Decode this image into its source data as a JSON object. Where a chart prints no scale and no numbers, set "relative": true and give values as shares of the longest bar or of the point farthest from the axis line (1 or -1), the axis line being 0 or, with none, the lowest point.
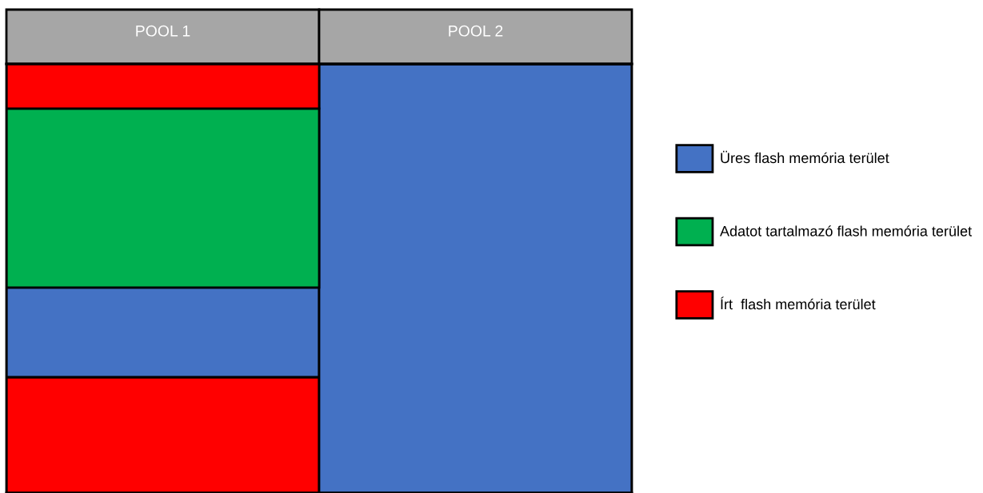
{
  "chart_data": {
    "type": "bar",
    "stacked": true,
    "relative": true,
    "categories": [
      "POOL 1",
      "POOL 2"
    ],
    "series": [
      {
        "color": "#ff0000",
        "values": [
          0.27,
          null
        ]
      },
      {
        "name": "Üres flash memória terület",
        "color": "#4472c4",
        "values": [
          0.209,
          1.0
        ]
      },
      {
        "name": "Adatot tartalmazó flash memória terület",
        "color": "#00b050",
        "values": [
          0.417,
          null
        ]
      },
      {
        "name": "Írt  flash memória terület",
        "color": "#ff0000",
        "values": [
          0.104,
          null
        ]
      }
    ],
    "legend": "right"
  }
}
